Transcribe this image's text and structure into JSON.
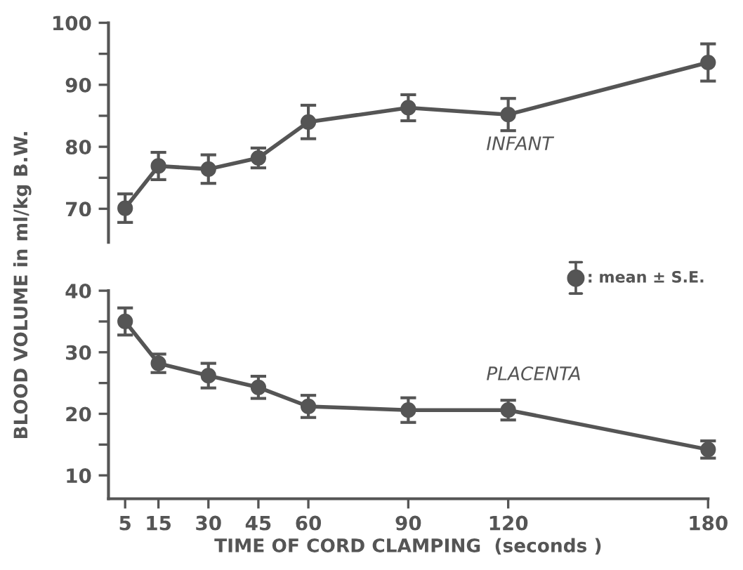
{
  "chart_data": [
    {
      "type": "line",
      "x": [
        5,
        15,
        30,
        45,
        60,
        90,
        120,
        180
      ],
      "xlim": [
        0,
        180
      ],
      "ylim": [
        64.6,
        100
      ],
      "yticks": [
        70,
        {
          "value": 75,
          "label": null
        },
        80,
        {
          "value": 85,
          "label": null
        },
        90,
        {
          "value": 95,
          "label": null
        },
        100
      ],
      "ylabel": "BLOOD VOLUME in ml/kg B.W.",
      "tick_labels": "y",
      "marker": "circle",
      "grid": false,
      "legend": false,
      "series": [
        {
          "name": "INFANT",
          "color": "#555555",
          "values": [
            70.1,
            76.9,
            76.4,
            78.2,
            84.0,
            86.3,
            85.2,
            93.6
          ],
          "errors": [
            2.3,
            2.2,
            2.3,
            1.6,
            2.7,
            2.1,
            2.6,
            3.0
          ]
        }
      ],
      "annotations": [
        ": mean ± S.E."
      ]
    },
    {
      "type": "line",
      "x": [
        5,
        15,
        30,
        45,
        60,
        90,
        120,
        180
      ],
      "xlim": [
        0,
        180
      ],
      "ylim": [
        6.2,
        40
      ],
      "xticks": [
        5,
        15,
        30,
        45,
        60,
        90,
        120,
        180
      ],
      "yticks": [
        10,
        {
          "value": 15,
          "label": null
        },
        20,
        {
          "value": 25,
          "label": null
        },
        30,
        {
          "value": 35,
          "label": null
        },
        40
      ],
      "xlabel": "TIME OF CORD CLAMPING  (seconds )",
      "marker": "circle",
      "grid": false,
      "legend": false,
      "series": [
        {
          "name": "PLACENTA",
          "color": "#555555",
          "values": [
            35.0,
            28.2,
            26.2,
            24.3,
            21.2,
            20.6,
            20.6,
            14.2
          ],
          "errors": [
            2.2,
            1.5,
            2.0,
            1.8,
            1.8,
            2.0,
            1.6,
            1.4
          ]
        }
      ]
    }
  ]
}
